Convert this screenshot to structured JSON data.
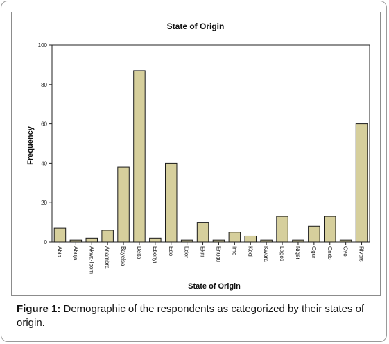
{
  "chart_data": {
    "type": "bar",
    "title": "State of Origin",
    "xlabel": "State of Origin",
    "ylabel": "Frequency",
    "categories": [
      "Abia",
      "Abuja",
      "Akwa-Ibom",
      "Anambra",
      "Bayelsa",
      "Delta",
      "Ebonyi",
      "Edo",
      "Edor",
      "Ekiti",
      "Enugu",
      "Imo",
      "Kogi",
      "Kwara",
      "Lagos",
      "Niger",
      "Ogun",
      "Ondo",
      "Oyo",
      "Rivers"
    ],
    "values": [
      7,
      1,
      2,
      6,
      38,
      87,
      2,
      40,
      1,
      10,
      1,
      5,
      3,
      1,
      13,
      1,
      8,
      13,
      1,
      60
    ],
    "ylim": [
      0,
      100
    ],
    "yticks": [
      0,
      20,
      40,
      60,
      80,
      100
    ],
    "grid": false,
    "bar_color": "#d6cf9c",
    "bar_stroke": "#1a1a1a"
  },
  "caption": {
    "label": "Figure 1:",
    "text": " Demographic of the respondents as categorized by their states of origin."
  }
}
